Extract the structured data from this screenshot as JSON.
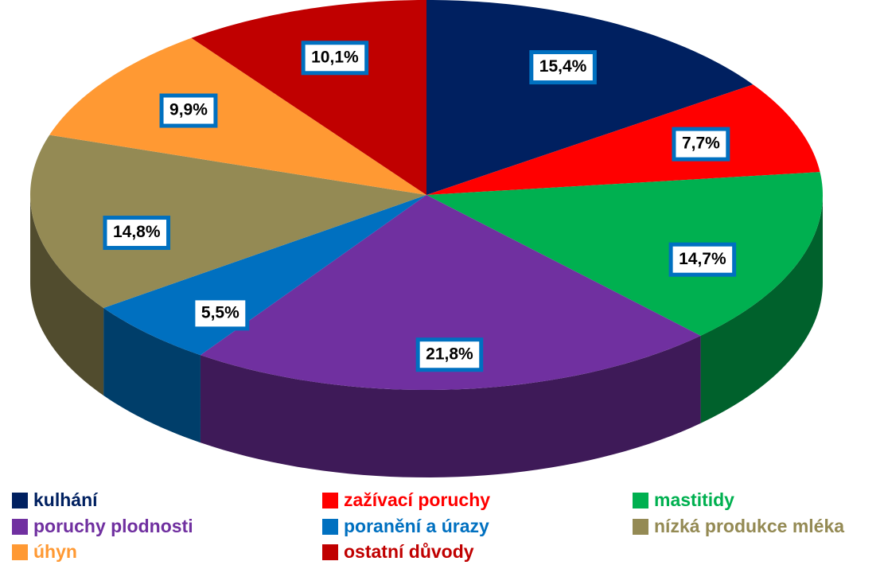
{
  "chart_data": {
    "type": "pie",
    "categories": [
      "kulhání",
      "zažívací poruchy",
      "mastitidy",
      "poruchy plodnosti",
      "poranění a úrazy",
      "nízká produkce mléka",
      "úhyn",
      "ostatní důvody"
    ],
    "values": [
      15.4,
      7.7,
      14.7,
      21.8,
      5.5,
      14.8,
      9.9,
      10.1
    ],
    "value_labels": [
      "15,4%",
      "7,7%",
      "14,7%",
      "21,8%",
      "5,5%",
      "14,8%",
      "9,9%",
      "10,1%"
    ],
    "colors": [
      "#002060",
      "#ff0000",
      "#00b050",
      "#7030a0",
      "#0070c0",
      "#948a54",
      "#ff9933",
      "#c00000"
    ],
    "legend": "bottom"
  }
}
